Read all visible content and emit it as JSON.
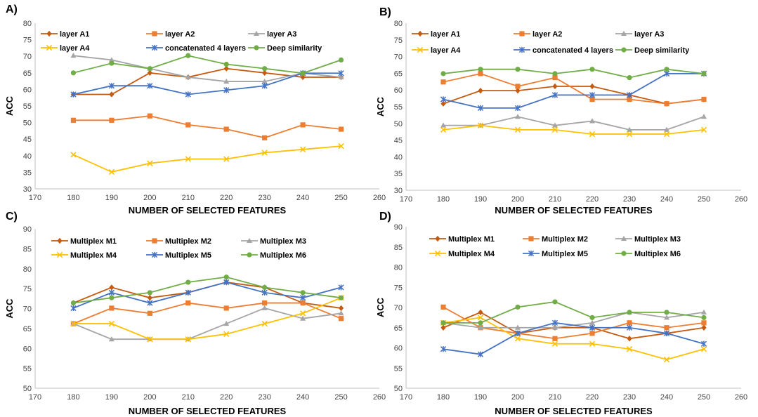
{
  "chart_data": [
    {
      "panel_label": "A)",
      "type": "line",
      "xlabel": "NUMBER OF SELECTED FEATURES",
      "ylabel": "ACC",
      "xlim": [
        170,
        260
      ],
      "ylim": [
        30,
        80
      ],
      "xticks": [
        170,
        180,
        190,
        200,
        210,
        220,
        230,
        240,
        250,
        260
      ],
      "yticks": [
        30,
        35,
        40,
        45,
        50,
        55,
        60,
        65,
        70,
        75,
        80
      ],
      "grid": false,
      "legend": "top",
      "x": [
        180,
        190,
        200,
        210,
        220,
        230,
        240,
        250
      ],
      "series": [
        {
          "name": "layer A1",
          "color": "#C55A11",
          "marker": "diamond",
          "values": [
            58.5,
            58.5,
            65,
            63.7,
            66.3,
            65,
            63.7,
            63.7
          ]
        },
        {
          "name": "layer A2",
          "color": "#ED7D31",
          "marker": "square",
          "values": [
            50.7,
            50.7,
            52,
            49.3,
            48,
            45.4,
            49.3,
            48
          ]
        },
        {
          "name": "layer A3",
          "color": "#A5A5A5",
          "marker": "triangle",
          "values": [
            70.2,
            68.9,
            66.3,
            63.7,
            62.4,
            62.4,
            64.9,
            63.7
          ]
        },
        {
          "name": "layer A4",
          "color": "#FFC000",
          "marker": "x",
          "values": [
            40.3,
            35.1,
            37.7,
            39,
            39,
            40.9,
            41.9,
            42.9
          ]
        },
        {
          "name": "concatenated 4 layers",
          "color": "#4472C4",
          "marker": "star",
          "values": [
            58.5,
            61.1,
            61.1,
            58.5,
            59.8,
            61.1,
            64.9,
            64.9
          ]
        },
        {
          "name": "Deep similarity",
          "color": "#70AD47",
          "marker": "circle",
          "values": [
            65,
            67.9,
            66.3,
            70.2,
            67.6,
            66.3,
            64.9,
            68.9
          ]
        }
      ]
    },
    {
      "panel_label": "B)",
      "type": "line",
      "xlabel": "NUMBER OF SELECTED FEATURES",
      "ylabel": "ACC",
      "xlim": [
        170,
        260
      ],
      "ylim": [
        30,
        80
      ],
      "xticks": [
        170,
        180,
        190,
        200,
        210,
        220,
        230,
        240,
        250,
        260
      ],
      "yticks": [
        30,
        35,
        40,
        45,
        50,
        55,
        60,
        65,
        70,
        75,
        80
      ],
      "grid": false,
      "legend": "top",
      "x": [
        180,
        190,
        200,
        210,
        220,
        230,
        240,
        250
      ],
      "series": [
        {
          "name": "layer A1",
          "color": "#C55A11",
          "marker": "diamond",
          "values": [
            55.9,
            59.8,
            59.8,
            61.1,
            61.1,
            58.5,
            55.9,
            57.2
          ]
        },
        {
          "name": "layer A2",
          "color": "#ED7D31",
          "marker": "square",
          "values": [
            62.4,
            64.9,
            61.1,
            63.7,
            57.2,
            57.2,
            55.9,
            57.2
          ]
        },
        {
          "name": "layer A3",
          "color": "#A5A5A5",
          "marker": "triangle",
          "values": [
            49.4,
            49.4,
            52,
            49.4,
            50.7,
            48.1,
            48.1,
            52
          ]
        },
        {
          "name": "layer A4",
          "color": "#FFC000",
          "marker": "x",
          "values": [
            48.1,
            49.4,
            48.1,
            48.1,
            46.8,
            46.8,
            46.8,
            48.1
          ]
        },
        {
          "name": "concatenated 4 layers",
          "color": "#4472C4",
          "marker": "star",
          "values": [
            57.2,
            54.6,
            54.6,
            58.5,
            58.5,
            58.5,
            64.9,
            64.9
          ]
        },
        {
          "name": "Deep similarity",
          "color": "#70AD47",
          "marker": "circle",
          "values": [
            64.9,
            66.2,
            66.2,
            64.9,
            66.2,
            63.7,
            66.2,
            64.9
          ]
        }
      ]
    },
    {
      "panel_label": "C)",
      "type": "line",
      "xlabel": "NUMBER OF SELECTED FEATURES",
      "ylabel": "ACC",
      "xlim": [
        170,
        260
      ],
      "ylim": [
        50,
        90
      ],
      "xticks": [
        170,
        180,
        190,
        200,
        210,
        220,
        230,
        240,
        250,
        260
      ],
      "yticks": [
        50,
        55,
        60,
        65,
        70,
        75,
        80,
        85,
        90
      ],
      "grid": false,
      "legend": "top",
      "x": [
        180,
        190,
        200,
        210,
        220,
        230,
        240,
        250
      ],
      "series": [
        {
          "name": "Multiplex M1",
          "color": "#C55A11",
          "marker": "diamond",
          "values": [
            71.4,
            75.3,
            72.7,
            74,
            76.6,
            75.3,
            71.4,
            70.1
          ]
        },
        {
          "name": "Multiplex M2",
          "color": "#ED7D31",
          "marker": "square",
          "values": [
            66.2,
            70.1,
            68.8,
            71.4,
            70.1,
            71.4,
            71.4,
            67.5
          ]
        },
        {
          "name": "Multiplex M3",
          "color": "#A5A5A5",
          "marker": "triangle",
          "values": [
            66.2,
            62.3,
            62.3,
            62.3,
            66.2,
            70.1,
            67.5,
            68.8
          ]
        },
        {
          "name": "Multiplex M4",
          "color": "#FFC000",
          "marker": "x",
          "values": [
            66.2,
            66.2,
            62.3,
            62.3,
            63.6,
            66.2,
            68.8,
            72.7
          ]
        },
        {
          "name": "Multiplex M5",
          "color": "#4472C4",
          "marker": "star",
          "values": [
            70.1,
            74,
            71.4,
            74,
            76.6,
            74,
            72.7,
            75.3
          ]
        },
        {
          "name": "Multiplex M6",
          "color": "#70AD47",
          "marker": "circle",
          "values": [
            71.4,
            72.7,
            74,
            76.6,
            77.9,
            75.3,
            74,
            72.7
          ]
        }
      ]
    },
    {
      "panel_label": "D)",
      "type": "line",
      "xlabel": "NUMBER OF SELECTED FEATURES",
      "ylabel": "ACC",
      "xlim": [
        170,
        260
      ],
      "ylim": [
        50,
        90
      ],
      "xticks": [
        170,
        180,
        190,
        200,
        210,
        220,
        230,
        240,
        250,
        260
      ],
      "yticks": [
        50,
        55,
        60,
        65,
        70,
        75,
        80,
        85,
        90
      ],
      "grid": false,
      "legend": "top",
      "x": [
        180,
        190,
        200,
        210,
        220,
        230,
        240,
        250
      ],
      "series": [
        {
          "name": "Multiplex M1",
          "color": "#C55A11",
          "marker": "diamond",
          "values": [
            65,
            68.8,
            63.6,
            65,
            65,
            62.3,
            63.6,
            65
          ]
        },
        {
          "name": "Multiplex M2",
          "color": "#ED7D31",
          "marker": "square",
          "values": [
            70.1,
            65,
            63.6,
            62.3,
            63.6,
            66.2,
            65,
            66.2
          ]
        },
        {
          "name": "Multiplex M3",
          "color": "#A5A5A5",
          "marker": "triangle",
          "values": [
            66.2,
            65,
            65,
            65,
            66.2,
            68.8,
            67.5,
            68.8
          ]
        },
        {
          "name": "Multiplex M4",
          "color": "#FFC000",
          "marker": "x",
          "values": [
            66.2,
            67.5,
            62.3,
            61,
            61,
            59.7,
            57.1,
            59.7
          ]
        },
        {
          "name": "Multiplex M5",
          "color": "#4472C4",
          "marker": "star",
          "values": [
            59.7,
            58.4,
            63.6,
            66.2,
            65,
            65,
            63.6,
            61
          ]
        },
        {
          "name": "Multiplex M6",
          "color": "#70AD47",
          "marker": "circle",
          "values": [
            66.2,
            66.2,
            70.1,
            71.4,
            67.5,
            68.8,
            68.8,
            67.5
          ]
        }
      ]
    }
  ]
}
